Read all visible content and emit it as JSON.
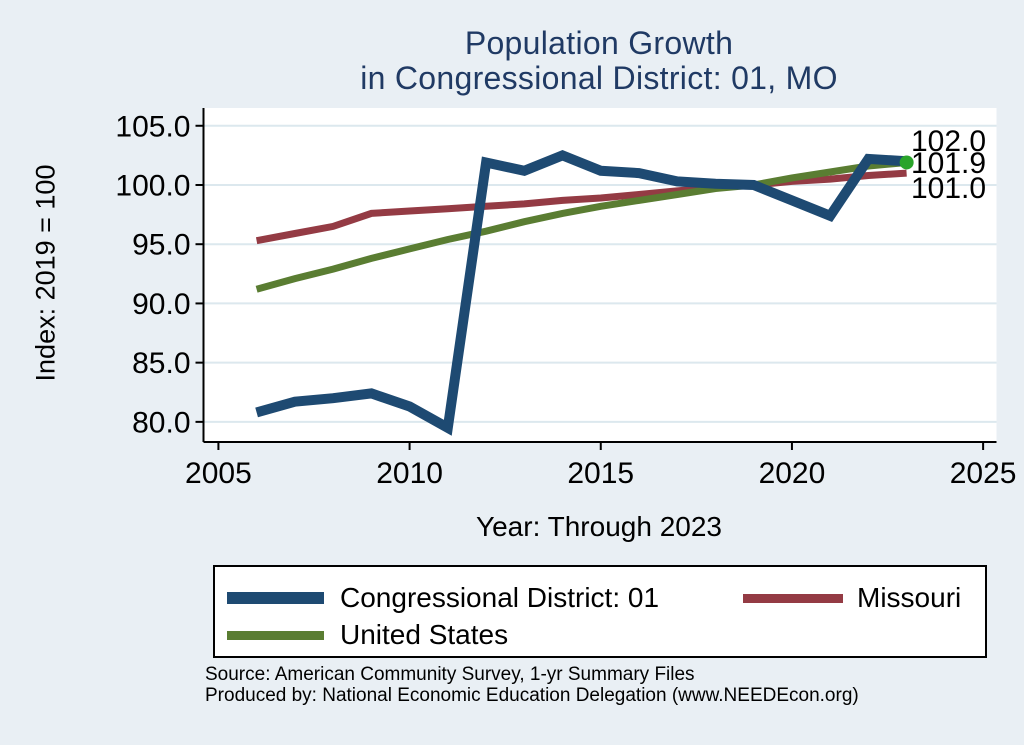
{
  "title": {
    "line1": "Population Growth",
    "line2": "in Congressional District: 01, MO"
  },
  "colors": {
    "page_background": "#e9eff4",
    "plot_background": "#ffffff",
    "gridline": "#dce8ee",
    "axis": "#000000",
    "title_text": "#203a64",
    "district_line": "#1e4a72",
    "missouri_line": "#943b44",
    "us_line": "#5a7d32",
    "end_marker": "#2aa42a"
  },
  "chart_data": {
    "type": "line",
    "title": "Population Growth in Congressional District: 01, MO",
    "xlabel": "Year: Through 2023",
    "ylabel": "Index: 2019 = 100",
    "grid": true,
    "legend_position": "bottom",
    "xlim": [
      2004.61,
      2025.35
    ],
    "ylim": [
      78.3,
      106.5
    ],
    "x_ticks": [
      {
        "value": 2005,
        "label": "2005"
      },
      {
        "value": 2010,
        "label": "2010"
      },
      {
        "value": 2015,
        "label": "2015"
      },
      {
        "value": 2020,
        "label": "2020"
      },
      {
        "value": 2025,
        "label": "2025"
      }
    ],
    "y_ticks": [
      {
        "value": 105,
        "label": "105.0"
      },
      {
        "value": 100,
        "label": "100.0"
      },
      {
        "value": 95,
        "label": "95.0"
      },
      {
        "value": 90,
        "label": "90.0"
      },
      {
        "value": 85,
        "label": "85.0"
      },
      {
        "value": 80,
        "label": "80.0"
      }
    ],
    "x": [
      2006,
      2007,
      2008,
      2009,
      2010,
      2011,
      2012,
      2013,
      2014,
      2015,
      2016,
      2017,
      2018,
      2019,
      2020,
      2021,
      2022,
      2023
    ],
    "series": [
      {
        "name": "Congressional District: 01",
        "color": "#1e4a72",
        "stroke_width": 10,
        "values": [
          80.8,
          81.7,
          82.0,
          82.4,
          81.3,
          79.5,
          101.9,
          101.2,
          102.5,
          101.2,
          101.0,
          100.3,
          100.1,
          100.0,
          98.7,
          97.4,
          102.2,
          102.0
        ]
      },
      {
        "name": "Missouri",
        "color": "#943b44",
        "stroke_width": 7,
        "values": [
          95.3,
          95.9,
          96.5,
          97.6,
          97.8,
          98.0,
          98.2,
          98.4,
          98.7,
          98.9,
          99.2,
          99.5,
          99.8,
          100.0,
          100.3,
          100.5,
          100.8,
          101.0
        ]
      },
      {
        "name": "United States",
        "color": "#5a7d32",
        "stroke_width": 7,
        "end_marker_color": "#2aa42a",
        "values": [
          91.2,
          92.1,
          92.9,
          93.8,
          94.6,
          95.4,
          96.1,
          96.9,
          97.6,
          98.2,
          98.7,
          99.2,
          99.7,
          100.0,
          100.6,
          101.1,
          101.6,
          101.9
        ]
      }
    ],
    "end_labels": [
      {
        "text": "102.0",
        "series": "Congressional District: 01"
      },
      {
        "text": "101.9",
        "series": "United States"
      },
      {
        "text": "101.0",
        "series": "Missouri"
      }
    ]
  },
  "footer": {
    "source": "Source: American Community Survey, 1-yr Summary Files",
    "produced_by": "Produced by: National Economic Education Delegation (www.NEEDEcon.org)"
  }
}
